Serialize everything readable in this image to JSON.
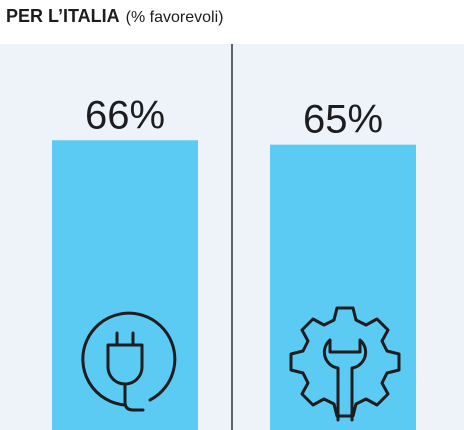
{
  "chart_data": {
    "type": "bar",
    "title": "PER L’ITALIA",
    "subtitle": "(% favorevoli)",
    "values": [
      66,
      65
    ],
    "value_labels": [
      "66%",
      "65%"
    ],
    "color": "#5ccbf4"
  }
}
